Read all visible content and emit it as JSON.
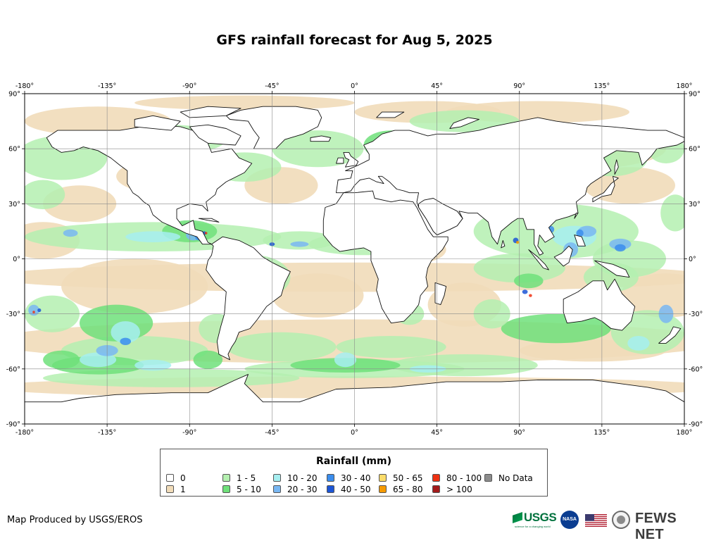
{
  "title": "GFS rainfall forecast for Aug 5, 2025",
  "map": {
    "projection": "equirectangular",
    "lon_range": [
      -180,
      180
    ],
    "lat_range": [
      -90,
      90
    ],
    "grid": true,
    "lon_labels": [
      "-180°",
      "-135°",
      "-90°",
      "-45°",
      "0°",
      "45°",
      "90°",
      "135°",
      "180°"
    ],
    "lat_labels": [
      "90°",
      "60°",
      "30°",
      "0°",
      "-30°",
      "-60°",
      "-90°"
    ]
  },
  "legend": {
    "title": "Rainfall (mm)",
    "position": "bottom-center",
    "items": [
      {
        "label": "0",
        "color": "#ffffff"
      },
      {
        "label": "1",
        "color": "#f1dcb9"
      },
      {
        "label": "1 - 5",
        "color": "#b4f0b0"
      },
      {
        "label": "5 - 10",
        "color": "#6fe07a"
      },
      {
        "label": "10 - 20",
        "color": "#a6eef0"
      },
      {
        "label": "20 - 30",
        "color": "#79b7f2"
      },
      {
        "label": "30 - 40",
        "color": "#3b8ded"
      },
      {
        "label": "40 - 50",
        "color": "#1c55d6"
      },
      {
        "label": "50 - 65",
        "color": "#fbdc6a"
      },
      {
        "label": "65 - 80",
        "color": "#f59a00"
      },
      {
        "label": "80 - 100",
        "color": "#ee3112"
      },
      {
        "label": "> 100",
        "color": "#a31b1b"
      },
      {
        "label": "No Data",
        "color": "#8c8c8c"
      }
    ]
  },
  "footer": {
    "credit": "Map Produced by USGS/EROS",
    "logos": {
      "usgs_text": "USGS",
      "usgs_tagline": "science for a changing world",
      "nasa_text": "NASA",
      "fews_text": "FEWS NET"
    }
  }
}
